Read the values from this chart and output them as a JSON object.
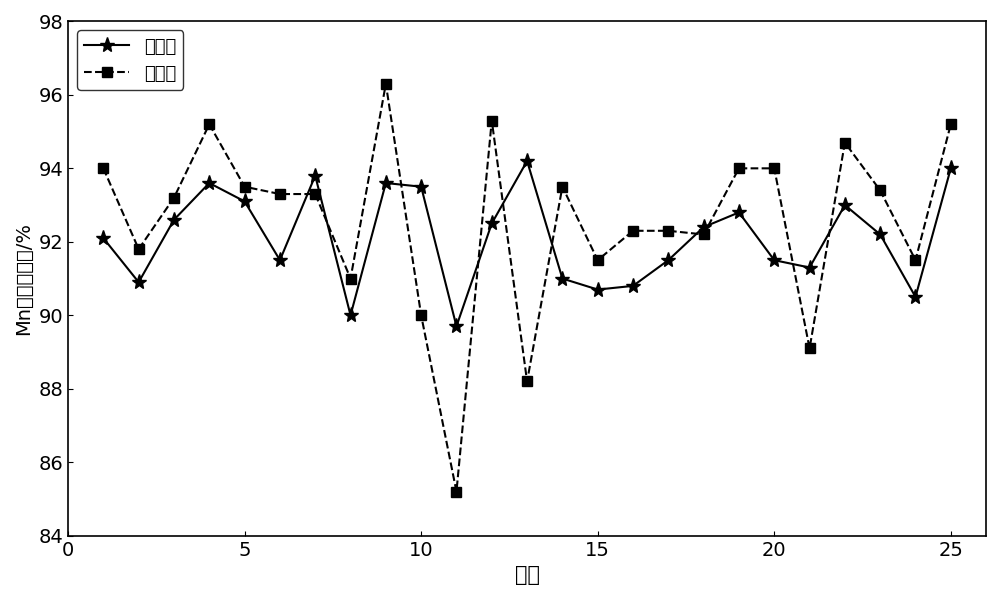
{
  "predicted_x": [
    1,
    2,
    3,
    4,
    5,
    6,
    7,
    8,
    9,
    10,
    11,
    12,
    13,
    14,
    15,
    16,
    17,
    18,
    19,
    20,
    21,
    22,
    23,
    24,
    25
  ],
  "predicted_y": [
    92.1,
    90.9,
    92.6,
    93.6,
    93.1,
    91.5,
    93.8,
    90.0,
    93.6,
    93.5,
    89.7,
    92.5,
    94.2,
    91.0,
    90.7,
    90.8,
    91.5,
    92.4,
    92.8,
    91.5,
    91.3,
    93.0,
    92.2,
    90.5,
    94.0
  ],
  "actual_x": [
    1,
    2,
    3,
    4,
    5,
    6,
    7,
    8,
    9,
    10,
    11,
    12,
    13,
    14,
    15,
    16,
    17,
    18,
    19,
    20,
    21,
    22,
    23,
    24,
    25
  ],
  "actual_y": [
    94.0,
    91.8,
    93.2,
    95.2,
    93.5,
    93.3,
    93.3,
    91.0,
    96.3,
    90.0,
    85.2,
    95.3,
    88.2,
    93.5,
    91.5,
    92.3,
    92.3,
    92.2,
    94.0,
    94.0,
    89.1,
    94.7,
    93.4,
    91.5,
    95.2
  ],
  "xlabel": "炉次",
  "ylabel": "Mn元素收得率/%",
  "legend_predicted": "预测値",
  "legend_actual": "实际値",
  "ylim": [
    84,
    98
  ],
  "xlim": [
    0,
    26
  ],
  "yticks": [
    84,
    86,
    88,
    90,
    92,
    94,
    96,
    98
  ],
  "xticks": [
    0,
    5,
    10,
    15,
    20,
    25
  ],
  "background_color": "#ffffff",
  "line_color": "#000000"
}
